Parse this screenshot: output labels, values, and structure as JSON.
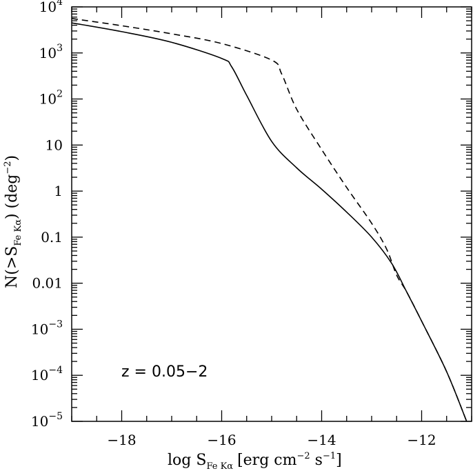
{
  "chart_data": {
    "type": "line",
    "x_log_note": "",
    "xlabel": "log S",
    "xlabel_sub": "Fe Kα",
    "xlabel_tail": "[erg cm",
    "xlabel_sup1": "−2",
    "xlabel_s": " s",
    "xlabel_sup2": "−1",
    "xlabel_close": "]",
    "ylabel": "N(>S",
    "ylabel_sub": "Fe Kα",
    "ylabel_tail": ")  (deg",
    "ylabel_sup": "−2",
    "ylabel_close": ")",
    "xlim": [
      -19,
      -11
    ],
    "ylim": [
      1e-05,
      10000
    ],
    "y_scale": "log",
    "x_ticks": [
      {
        "value": -18,
        "label": "−18"
      },
      {
        "value": -16,
        "label": "−16"
      },
      {
        "value": -14,
        "label": "−14"
      },
      {
        "value": -12,
        "label": "−12"
      }
    ],
    "y_ticks": [
      {
        "exp": 4,
        "base": "10",
        "sup": "4"
      },
      {
        "exp": 3,
        "base": "10",
        "sup": "3"
      },
      {
        "exp": 2,
        "base": "10",
        "sup": "2"
      },
      {
        "exp": 1,
        "base": "10",
        "sup": ""
      },
      {
        "exp": 0,
        "base": "1",
        "sup": ""
      },
      {
        "exp": -1,
        "base": "0.1",
        "sup": ""
      },
      {
        "exp": -2,
        "base": "0.01",
        "sup": ""
      },
      {
        "exp": -3,
        "base": "10",
        "sup": "−3"
      },
      {
        "exp": -4,
        "base": "10",
        "sup": "−4"
      },
      {
        "exp": -5,
        "base": "10",
        "sup": "−5"
      }
    ],
    "annotation": "z = 0.05−2",
    "series": [
      {
        "style": "solid",
        "x": [
          -19.0,
          -18.0,
          -17.0,
          -16.0,
          -15.8,
          -15.5,
          -15.0,
          -14.5,
          -14.0,
          -13.5,
          -13.0,
          -12.6,
          -12.3,
          -12.0,
          -11.5,
          -11.1
        ],
        "y": [
          4500,
          2900,
          1700,
          760,
          500,
          120,
          12,
          3.2,
          1.1,
          0.35,
          0.1,
          0.027,
          0.0065,
          0.0015,
          0.00012,
          1e-05
        ]
      },
      {
        "style": "dashed",
        "x": [
          -19.0,
          -18.0,
          -17.0,
          -16.0,
          -15.0,
          -14.8,
          -14.5,
          -14.0,
          -13.5,
          -13.0,
          -12.7,
          -12.5,
          -12.3,
          -12.0,
          -11.5,
          -11.1
        ],
        "y": [
          5600,
          3900,
          2600,
          1600,
          700,
          350,
          60,
          8,
          1.2,
          0.2,
          0.055,
          0.015,
          0.0065,
          0.0015,
          0.00012,
          1e-05
        ]
      }
    ]
  }
}
